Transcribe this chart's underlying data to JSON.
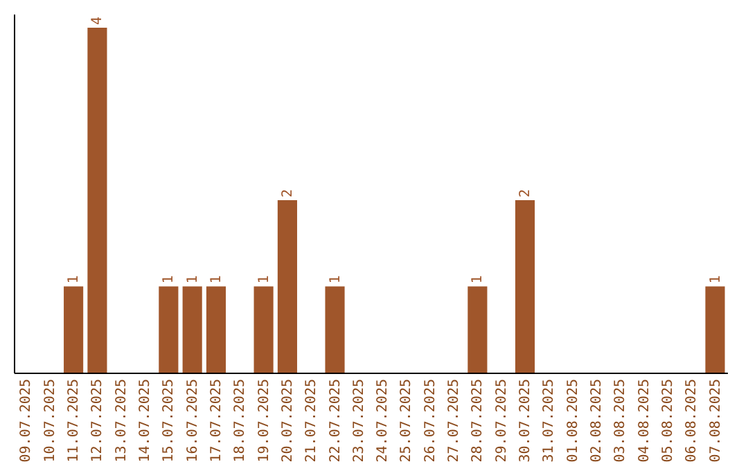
{
  "chart_data": {
    "type": "bar",
    "categories": [
      "09.07.2025",
      "10.07.2025",
      "11.07.2025",
      "12.07.2025",
      "13.07.2025",
      "14.07.2025",
      "15.07.2025",
      "16.07.2025",
      "17.07.2025",
      "18.07.2025",
      "19.07.2025",
      "20.07.2025",
      "21.07.2025",
      "22.07.2025",
      "23.07.2025",
      "24.07.2025",
      "25.07.2025",
      "26.07.2025",
      "27.07.2025",
      "28.07.2025",
      "29.07.2025",
      "30.07.2025",
      "31.07.2025",
      "01.08.2025",
      "02.08.2025",
      "03.08.2025",
      "04.08.2025",
      "05.08.2025",
      "06.08.2025",
      "07.08.2025"
    ],
    "values": [
      0,
      0,
      1,
      4,
      0,
      0,
      1,
      1,
      1,
      0,
      1,
      2,
      0,
      1,
      0,
      0,
      0,
      0,
      0,
      1,
      0,
      2,
      0,
      0,
      0,
      0,
      0,
      0,
      0,
      1
    ],
    "value_labels": [
      null,
      null,
      "1",
      "4",
      null,
      null,
      "1",
      "1",
      "1",
      null,
      "1",
      "2",
      null,
      "1",
      null,
      null,
      null,
      null,
      null,
      "1",
      null,
      "2",
      null,
      null,
      null,
      null,
      null,
      null,
      null,
      "1"
    ],
    "color": "#a0562b",
    "ylim": [
      0,
      4.16
    ],
    "tick_labels": "x",
    "grid": false
  }
}
